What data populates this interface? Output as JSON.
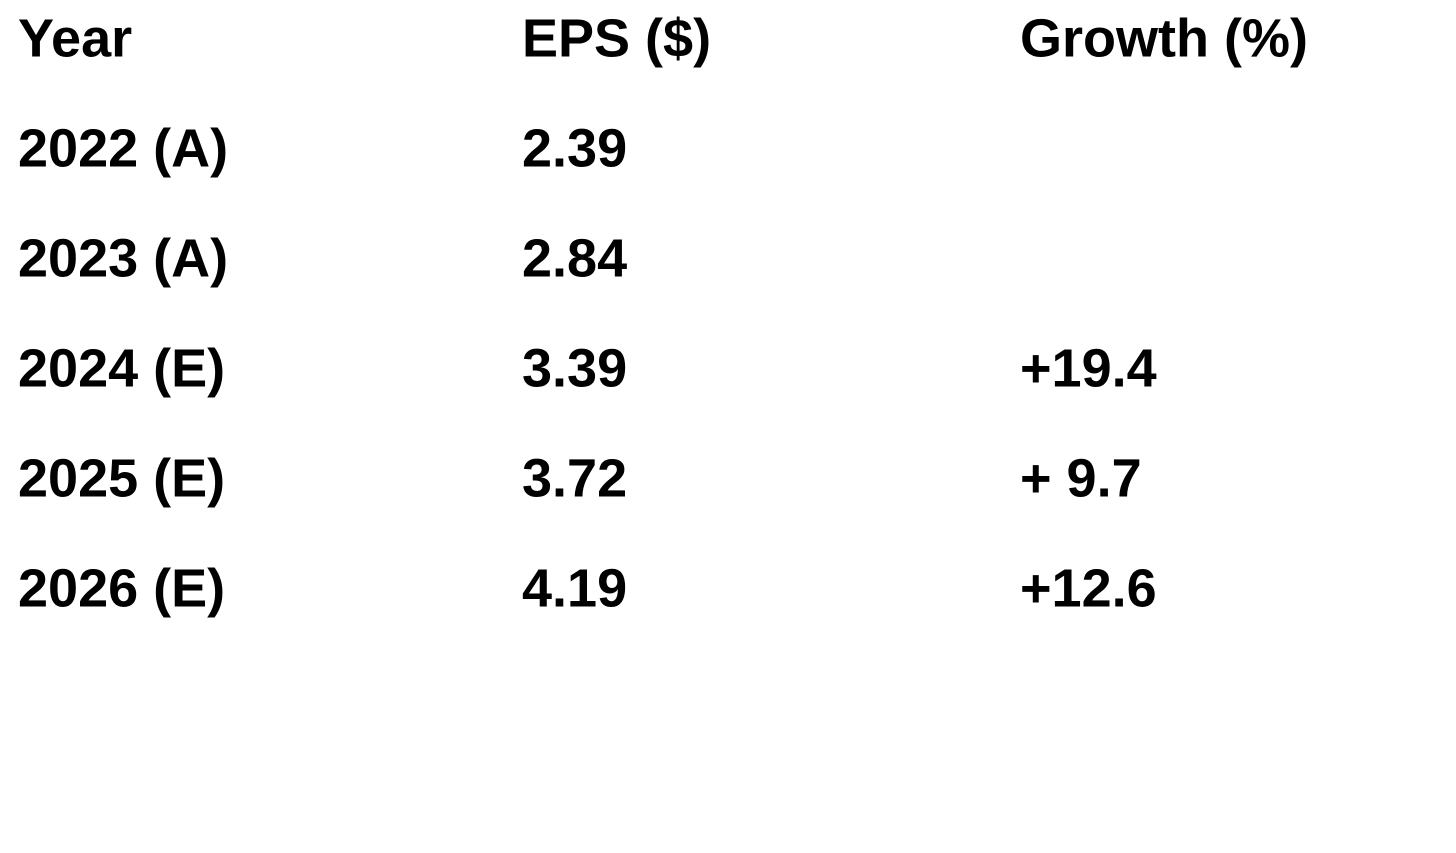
{
  "table": {
    "header": [
      "Year",
      "EPS ($)",
      "Growth (%)"
    ],
    "rows": [
      [
        "2022 (A)",
        "2.39"
      ],
      [
        "2023 (A)",
        "2.84"
      ],
      [
        "2024 (E)",
        "3.39",
        "+19.4"
      ],
      [
        "2025 (E)",
        "3.72",
        "+ 9.7"
      ],
      [
        "2026 (E)",
        "4.19",
        "+12.6"
      ]
    ]
  }
}
